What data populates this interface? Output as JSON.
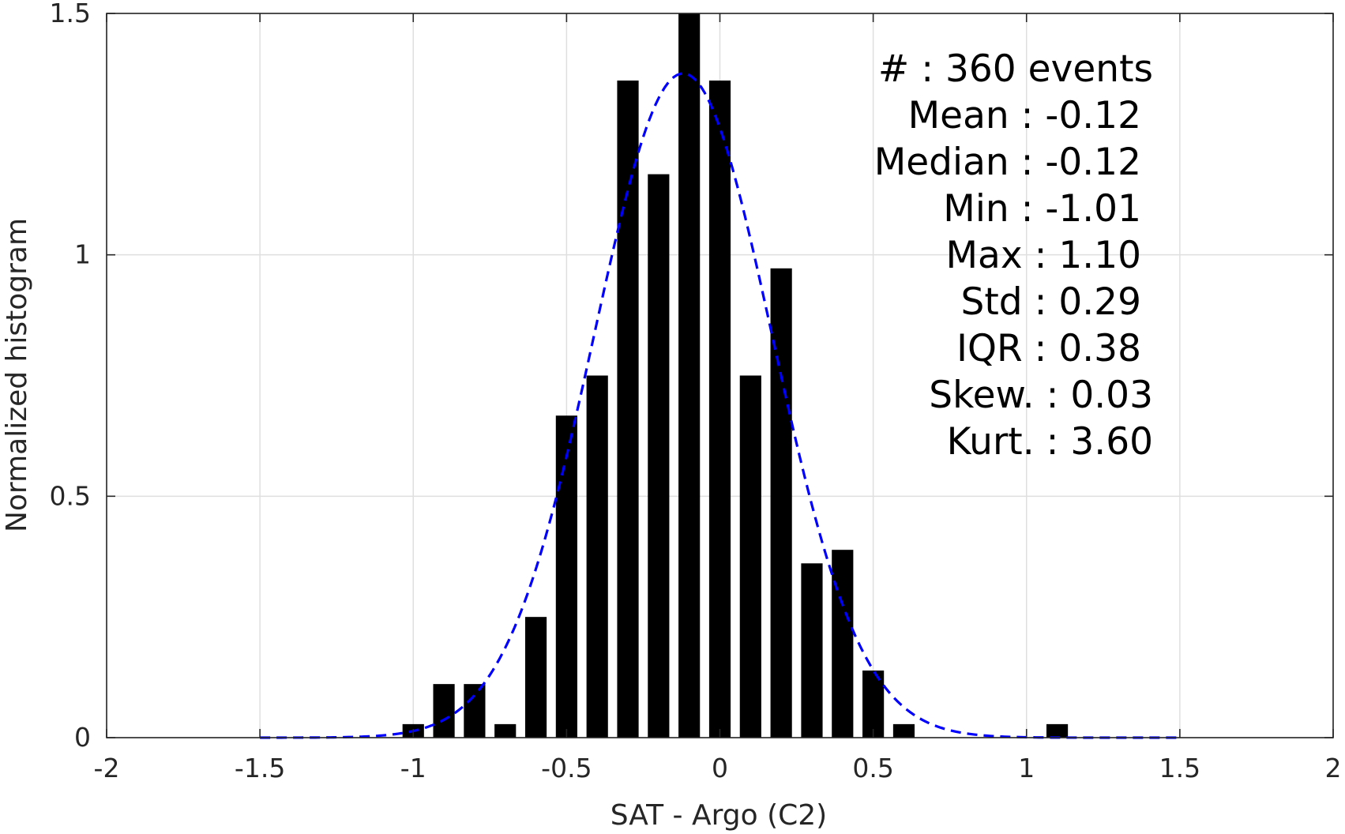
{
  "chart_data": {
    "type": "bar",
    "xlabel": "SAT - Argo (C2)",
    "ylabel": "Normalized histogram",
    "xlim": [
      -2,
      2
    ],
    "ylim": [
      0,
      1.5
    ],
    "xticks": [
      -2,
      -1.5,
      -1,
      -0.5,
      0,
      0.5,
      1,
      1.5,
      2
    ],
    "xtick_labels": [
      "-2",
      "-1.5",
      "-1",
      "-0.5",
      "0",
      "0.5",
      "1",
      "1.5",
      "2"
    ],
    "yticks": [
      0,
      0.5,
      1,
      1.5
    ],
    "ytick_labels": [
      "0",
      "0.5",
      "1",
      "1.5"
    ],
    "grid": true,
    "bin_width": 0.1,
    "bar_fraction_of_bin": 0.7,
    "bars": {
      "x": [
        -1.0,
        -0.9,
        -0.8,
        -0.7,
        -0.6,
        -0.5,
        -0.4,
        -0.3,
        -0.2,
        -0.1,
        0.0,
        0.1,
        0.2,
        0.3,
        0.4,
        0.5,
        0.6,
        1.1
      ],
      "values": [
        0.028,
        0.111,
        0.111,
        0.028,
        0.25,
        0.667,
        0.75,
        1.361,
        1.167,
        1.5,
        1.361,
        0.75,
        0.972,
        0.361,
        0.389,
        0.139,
        0.028,
        0.028
      ],
      "color": "#000000"
    },
    "fit": {
      "type": "normal-pdf",
      "mean": -0.12,
      "std": 0.29,
      "x_range": [
        -1.5,
        1.5
      ],
      "color": "#0000ff",
      "style": "dashed"
    },
    "stats": [
      {
        "name": "#",
        "sep": " : ",
        "value": "360 events"
      },
      {
        "name": "Mean",
        "sep": " : ",
        "value": "-0.12"
      },
      {
        "name": "Median",
        "sep": " : ",
        "value": "-0.12"
      },
      {
        "name": "Min",
        "sep": " : ",
        "value": "-1.01"
      },
      {
        "name": "Max",
        "sep": " : ",
        "value": "1.10"
      },
      {
        "name": "Std",
        "sep": " : ",
        "value": "0.29"
      },
      {
        "name": "IQR",
        "sep": " : ",
        "value": "0.38"
      },
      {
        "name": "Skew.",
        "sep": " : ",
        "value": "0.03"
      },
      {
        "name": "Kurt.",
        "sep": " : ",
        "value": "3.60"
      }
    ]
  }
}
